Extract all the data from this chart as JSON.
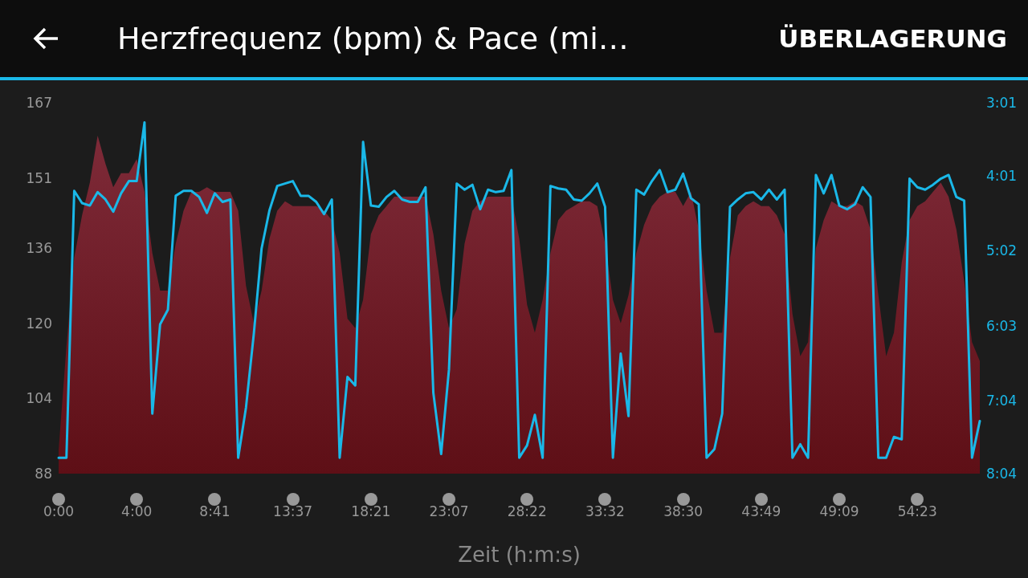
{
  "chart_data": {
    "type": "area",
    "title": "Herzfrequenz (bpm) & Pace (mi…",
    "xlabel": "Zeit (h:m:s)",
    "annotations": [
      "ÜBERLAGERUNG"
    ],
    "grid": false,
    "marker": "none",
    "line_style": "solid",
    "categories": [
      "0:00",
      null,
      null,
      null,
      null,
      null,
      null,
      null,
      null,
      null,
      "4:00",
      null,
      null,
      null,
      null,
      null,
      null,
      null,
      null,
      null,
      "8:41",
      null,
      null,
      null,
      null,
      null,
      null,
      null,
      null,
      null,
      "13:37",
      null,
      null,
      null,
      null,
      null,
      null,
      null,
      null,
      null,
      "18:21",
      null,
      null,
      null,
      null,
      null,
      null,
      null,
      null,
      null,
      "23:07",
      null,
      null,
      null,
      null,
      null,
      null,
      null,
      null,
      null,
      "28:22",
      null,
      null,
      null,
      null,
      null,
      null,
      null,
      null,
      null,
      "33:32",
      null,
      null,
      null,
      null,
      null,
      null,
      null,
      null,
      null,
      "38:30",
      null,
      null,
      null,
      null,
      null,
      null,
      null,
      null,
      null,
      "43:49",
      null,
      null,
      null,
      null,
      null,
      null,
      null,
      null,
      null,
      "49:09",
      null,
      null,
      null,
      null,
      null,
      null,
      null,
      null,
      null,
      "54:23",
      null,
      null,
      null,
      null,
      null,
      null,
      null,
      null
    ],
    "ylim": [
      88,
      167
    ],
    "yticks": [
      88,
      104,
      120,
      136,
      151,
      167
    ],
    "y2lim": [
      484,
      181
    ],
    "y2ticks": [
      {
        "value": 181,
        "label": "3:01"
      },
      {
        "value": 241,
        "label": "4:01"
      },
      {
        "value": 302,
        "label": "5:02"
      },
      {
        "value": 363,
        "label": "6:03"
      },
      {
        "value": 424,
        "label": "7:04"
      },
      {
        "value": 484,
        "label": "8:04"
      }
    ],
    "series": [
      {
        "color": "#7e2a38",
        "values": [
          93,
          115,
          134,
          143,
          150,
          160,
          154,
          149,
          152,
          152,
          155,
          148,
          135,
          127,
          127,
          137,
          144,
          148,
          148,
          149,
          148,
          148,
          148,
          144,
          128,
          120,
          127,
          138,
          144,
          146,
          145,
          145,
          145,
          145,
          144,
          142,
          135,
          121,
          119,
          125,
          139,
          143,
          145,
          147,
          147,
          147,
          147,
          147,
          139,
          127,
          119,
          123,
          137,
          144,
          146,
          147,
          147,
          147,
          147,
          138,
          124,
          118,
          125,
          135,
          142,
          144,
          145,
          146,
          146,
          145,
          137,
          125,
          120,
          126,
          135,
          141,
          145,
          147,
          148,
          148,
          145,
          148,
          140,
          127,
          118,
          118,
          134,
          143,
          145,
          146,
          145,
          145,
          143,
          139,
          122,
          113,
          116,
          136,
          142,
          146,
          145,
          145,
          146,
          145,
          140,
          126,
          113,
          118,
          133,
          142,
          145,
          146,
          148,
          150,
          147,
          140,
          129,
          116,
          112
        ]
      },
      {
        "type": "line",
        "axis": "y2",
        "color": "#1ab8e8",
        "values": [
          471,
          471,
          253,
          263,
          265,
          254,
          260,
          270,
          255,
          245,
          245,
          197,
          435,
          362,
          350,
          257,
          253,
          253,
          258,
          271,
          255,
          262,
          260,
          471,
          430,
          370,
          300,
          269,
          249,
          247,
          245,
          257,
          257,
          262,
          272,
          260,
          471,
          405,
          412,
          213,
          265,
          266,
          258,
          253,
          260,
          262,
          262,
          250,
          418,
          468,
          399,
          247,
          252,
          248,
          268,
          252,
          254,
          253,
          236,
          471,
          461,
          436,
          471,
          249,
          251,
          252,
          260,
          261,
          255,
          247,
          266,
          471,
          386,
          437,
          252,
          256,
          245,
          236,
          254,
          252,
          239,
          259,
          264,
          471,
          464,
          435,
          266,
          260,
          255,
          254,
          260,
          252,
          260,
          252,
          471,
          460,
          471,
          240,
          255,
          240,
          265,
          268,
          264,
          250,
          258,
          471,
          471,
          454,
          456,
          243,
          250,
          252,
          248,
          243,
          240,
          258,
          261,
          471,
          441
        ]
      }
    ]
  }
}
